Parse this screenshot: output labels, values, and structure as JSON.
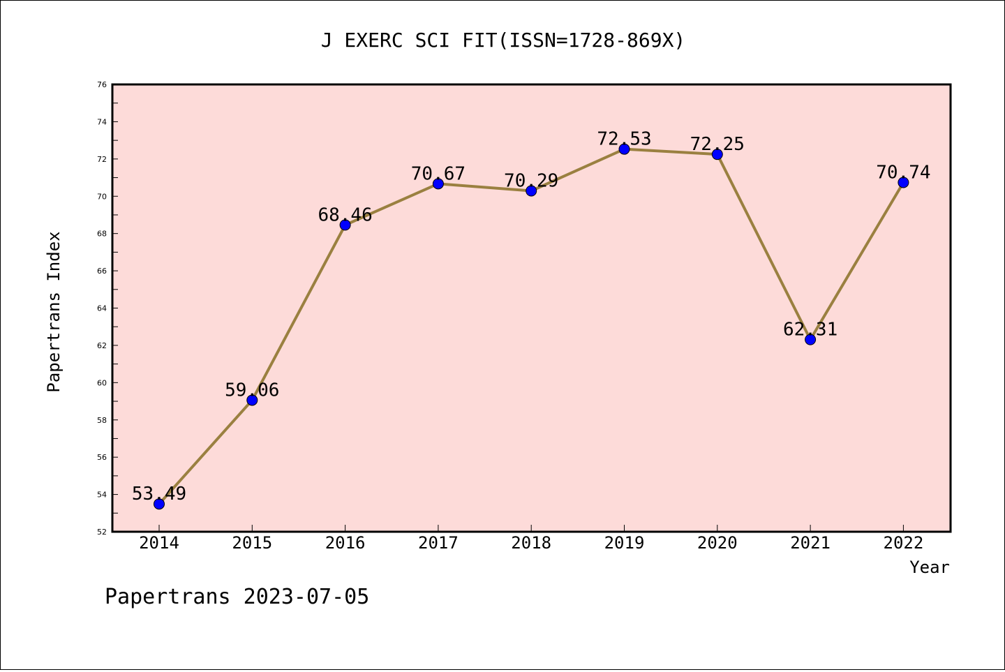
{
  "chart_data": {
    "type": "line",
    "title": "J EXERC SCI FIT(ISSN=1728-869X)",
    "xlabel": "Year",
    "ylabel": "Papertrans Index",
    "categories": [
      "2014",
      "2015",
      "2016",
      "2017",
      "2018",
      "2019",
      "2020",
      "2021",
      "2022"
    ],
    "series": [
      {
        "values": [
          53.49,
          59.06,
          68.46,
          70.67,
          70.29,
          72.53,
          72.25,
          62.31,
          70.74
        ],
        "labels": [
          "53.49",
          "59.06",
          "68.46",
          "70.67",
          "70.29",
          "72.53",
          "72.25",
          "62.31",
          "70.74"
        ]
      }
    ],
    "ylim": [
      52,
      76
    ],
    "yticks": [
      52,
      54,
      56,
      58,
      60,
      62,
      64,
      66,
      68,
      70,
      72,
      74,
      76
    ],
    "ytick_labels": [
      "52",
      "54",
      "56",
      "58",
      "60",
      "62",
      "64",
      "66",
      "68",
      "70",
      "72",
      "74",
      "76"
    ],
    "grid": false,
    "colors": {
      "plot_background": "#fddbd9",
      "line": "#9a8040",
      "marker": "#0000ff"
    }
  },
  "footer": "Papertrans 2023-07-05"
}
